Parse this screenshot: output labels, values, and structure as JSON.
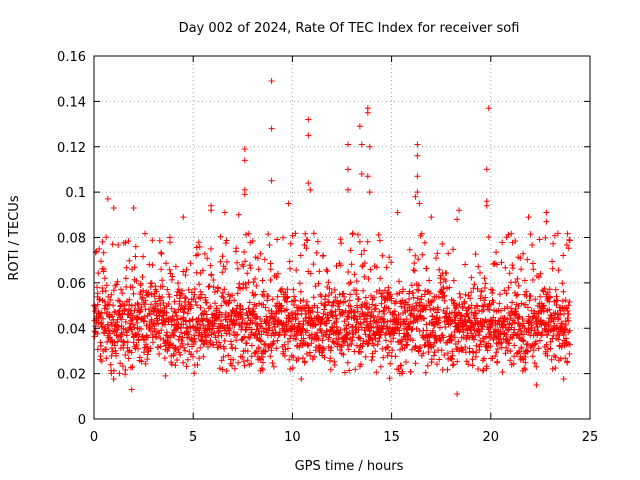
{
  "chart_data": {
    "type": "scatter",
    "title": "Day 002 of 2024, Rate Of TEC Index for receiver sofi",
    "xlabel": "GPS time / hours",
    "ylabel": "ROTI / TECUs",
    "xlim": [
      0,
      25
    ],
    "ylim": [
      0,
      0.16
    ],
    "x_ticks": [
      0,
      5,
      10,
      15,
      20,
      25
    ],
    "x_tick_labels": [
      "0",
      "5",
      "10",
      "15",
      "20",
      "25"
    ],
    "y_ticks": [
      0,
      0.02,
      0.04,
      0.06,
      0.08,
      0.1,
      0.12,
      0.14,
      0.16
    ],
    "y_tick_labels": [
      "0",
      "0.02",
      "0.04",
      "0.06",
      "0.08",
      "0.1",
      "0.12",
      "0.14",
      "0.16"
    ],
    "grid": true,
    "marker": "+",
    "series_color": "#ff0000",
    "bulk_data": {
      "description": "dense scatter of ROTI samples across 0-24 h",
      "x_range": [
        0,
        24
      ],
      "band_min": 0.02,
      "band_max": 0.07,
      "center": 0.042,
      "spread": 0.014,
      "count": 2600
    },
    "outliers": [
      [
        8.95,
        0.149
      ],
      [
        8.95,
        0.128
      ],
      [
        8.95,
        0.105
      ],
      [
        7.6,
        0.119
      ],
      [
        7.6,
        0.114
      ],
      [
        7.6,
        0.101
      ],
      [
        7.6,
        0.099
      ],
      [
        10.8,
        0.132
      ],
      [
        10.8,
        0.125
      ],
      [
        10.8,
        0.104
      ],
      [
        10.9,
        0.101
      ],
      [
        12.8,
        0.121
      ],
      [
        12.8,
        0.11
      ],
      [
        12.8,
        0.101
      ],
      [
        13.4,
        0.129
      ],
      [
        13.5,
        0.121
      ],
      [
        13.5,
        0.108
      ],
      [
        13.8,
        0.137
      ],
      [
        13.8,
        0.135
      ],
      [
        13.9,
        0.12
      ],
      [
        13.8,
        0.107
      ],
      [
        13.9,
        0.1
      ],
      [
        16.3,
        0.121
      ],
      [
        16.3,
        0.116
      ],
      [
        16.3,
        0.107
      ],
      [
        16.3,
        0.1
      ],
      [
        16.2,
        0.098
      ],
      [
        16.4,
        0.095
      ],
      [
        19.9,
        0.137
      ],
      [
        19.8,
        0.11
      ],
      [
        19.8,
        0.096
      ],
      [
        19.8,
        0.094
      ],
      [
        0.7,
        0.097
      ],
      [
        1.0,
        0.093
      ],
      [
        2.0,
        0.093
      ],
      [
        4.5,
        0.089
      ],
      [
        5.9,
        0.094
      ],
      [
        5.9,
        0.092
      ],
      [
        6.6,
        0.091
      ],
      [
        9.8,
        0.095
      ],
      [
        18.4,
        0.092
      ],
      [
        18.3,
        0.088
      ],
      [
        21.9,
        0.089
      ],
      [
        22.8,
        0.091
      ],
      [
        22.8,
        0.087
      ],
      [
        7.3,
        0.09
      ],
      [
        15.3,
        0.091
      ],
      [
        17.0,
        0.089
      ],
      [
        3.6,
        0.019
      ],
      [
        14.9,
        0.018
      ],
      [
        18.3,
        0.011
      ],
      [
        1.9,
        0.013
      ],
      [
        22.3,
        0.015
      ]
    ]
  }
}
